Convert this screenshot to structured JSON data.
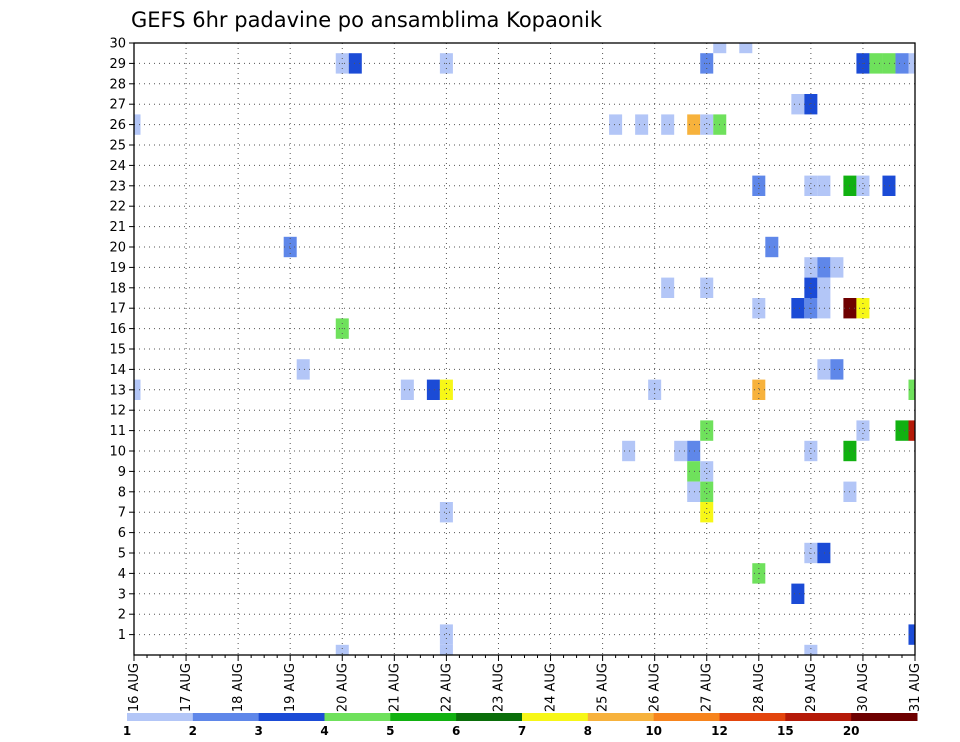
{
  "chart_data": {
    "type": "heatmap",
    "title": "GEFS 6hr padavine po ansamblima Kopaonik",
    "xlabel": "",
    "ylabel": "",
    "x_tick_labels": [
      "16 AUG",
      "17 AUG",
      "18 AUG",
      "19 AUG",
      "20 AUG",
      "21 AUG",
      "22 AUG",
      "23 AUG",
      "24 AUG",
      "25 AUG",
      "26 AUG",
      "27 AUG",
      "28 AUG",
      "29 AUG",
      "30 AUG",
      "31 AUG"
    ],
    "y_tick_labels": [
      "1",
      "2",
      "3",
      "4",
      "5",
      "6",
      "7",
      "8",
      "9",
      "10",
      "11",
      "12",
      "13",
      "14",
      "15",
      "16",
      "17",
      "18",
      "19",
      "20",
      "21",
      "22",
      "23",
      "24",
      "25",
      "26",
      "27",
      "28",
      "29",
      "30"
    ],
    "xlim": [
      0,
      60
    ],
    "ylim": [
      0,
      30
    ],
    "x_unit": "6-hour steps from 16 AUG 00z",
    "y_unit": "ensemble member",
    "grid": true,
    "legend": {
      "placement": "bottom",
      "thresholds": [
        "1",
        "2",
        "3",
        "4",
        "5",
        "6",
        "7",
        "8",
        "10",
        "12",
        "15",
        "20"
      ],
      "colors": [
        "#b3c6f7",
        "#5f87e9",
        "#1b4bd6",
        "#6fe15c",
        "#11b111",
        "#0a6e0a",
        "#f7f717",
        "#f7b23c",
        "#f7841d",
        "#e3450d",
        "#b51a08",
        "#6e0000"
      ]
    },
    "cells": [
      {
        "t": 0,
        "m": 26,
        "c": 0
      },
      {
        "t": 0,
        "m": 13,
        "c": 0
      },
      {
        "t": 12,
        "m": 20,
        "c": 1
      },
      {
        "t": 13,
        "m": 14,
        "c": 0
      },
      {
        "t": 16,
        "m": 29,
        "c": 0
      },
      {
        "t": 16,
        "m": 16,
        "c": 3
      },
      {
        "t": 16,
        "m": 0,
        "c": 0
      },
      {
        "t": 17,
        "m": 29,
        "c": 2
      },
      {
        "t": 21,
        "m": 13,
        "c": 0
      },
      {
        "t": 23,
        "m": 13,
        "c": 2
      },
      {
        "t": 24,
        "m": 29,
        "c": 0
      },
      {
        "t": 24,
        "m": 13,
        "c": 6
      },
      {
        "t": 24,
        "m": 7,
        "c": 0
      },
      {
        "t": 24,
        "m": 1,
        "c": 0
      },
      {
        "t": 24,
        "m": 0,
        "c": 0
      },
      {
        "t": 37,
        "m": 26,
        "c": 0
      },
      {
        "t": 38,
        "m": 10,
        "c": 0
      },
      {
        "t": 39,
        "m": 26,
        "c": 0
      },
      {
        "t": 40,
        "m": 13,
        "c": 0
      },
      {
        "t": 41,
        "m": 26,
        "c": 0
      },
      {
        "t": 41,
        "m": 18,
        "c": 0
      },
      {
        "t": 42,
        "m": 10,
        "c": 0
      },
      {
        "t": 43,
        "m": 26,
        "c": 7
      },
      {
        "t": 43,
        "m": 10,
        "c": 1
      },
      {
        "t": 43,
        "m": 9,
        "c": 3
      },
      {
        "t": 43,
        "m": 8,
        "c": 0
      },
      {
        "t": 44,
        "m": 29,
        "c": 1
      },
      {
        "t": 44,
        "m": 26,
        "c": 0
      },
      {
        "t": 44,
        "m": 18,
        "c": 0
      },
      {
        "t": 44,
        "m": 11,
        "c": 3
      },
      {
        "t": 44,
        "m": 9,
        "c": 0
      },
      {
        "t": 44,
        "m": 8,
        "c": 3
      },
      {
        "t": 44,
        "m": 7,
        "c": 6
      },
      {
        "t": 45,
        "m": 26,
        "c": 3
      },
      {
        "t": 45,
        "m": 30,
        "c": 0
      },
      {
        "t": 47,
        "m": 30,
        "c": 0
      },
      {
        "t": 48,
        "m": 23,
        "c": 1
      },
      {
        "t": 48,
        "m": 17,
        "c": 0
      },
      {
        "t": 48,
        "m": 13,
        "c": 7
      },
      {
        "t": 48,
        "m": 4,
        "c": 3
      },
      {
        "t": 49,
        "m": 20,
        "c": 1
      },
      {
        "t": 51,
        "m": 27,
        "c": 0
      },
      {
        "t": 51,
        "m": 17,
        "c": 2
      },
      {
        "t": 51,
        "m": 3,
        "c": 2
      },
      {
        "t": 52,
        "m": 27,
        "c": 2
      },
      {
        "t": 52,
        "m": 23,
        "c": 0
      },
      {
        "t": 52,
        "m": 19,
        "c": 0
      },
      {
        "t": 52,
        "m": 18,
        "c": 2
      },
      {
        "t": 52,
        "m": 17,
        "c": 1
      },
      {
        "t": 52,
        "m": 10,
        "c": 0
      },
      {
        "t": 52,
        "m": 5,
        "c": 0
      },
      {
        "t": 52,
        "m": 0,
        "c": 0
      },
      {
        "t": 53,
        "m": 23,
        "c": 0
      },
      {
        "t": 53,
        "m": 19,
        "c": 1
      },
      {
        "t": 53,
        "m": 18,
        "c": 0
      },
      {
        "t": 53,
        "m": 17,
        "c": 0
      },
      {
        "t": 53,
        "m": 14,
        "c": 0
      },
      {
        "t": 53,
        "m": 5,
        "c": 2
      },
      {
        "t": 54,
        "m": 19,
        "c": 0
      },
      {
        "t": 54,
        "m": 14,
        "c": 1
      },
      {
        "t": 55,
        "m": 23,
        "c": 4
      },
      {
        "t": 55,
        "m": 17,
        "c": 11
      },
      {
        "t": 55,
        "m": 10,
        "c": 4
      },
      {
        "t": 55,
        "m": 8,
        "c": 0
      },
      {
        "t": 56,
        "m": 29,
        "c": 2
      },
      {
        "t": 56,
        "m": 23,
        "c": 0
      },
      {
        "t": 56,
        "m": 17,
        "c": 6
      },
      {
        "t": 56,
        "m": 11,
        "c": 0
      },
      {
        "t": 57,
        "m": 29,
        "c": 3
      },
      {
        "t": 58,
        "m": 29,
        "c": 3
      },
      {
        "t": 58,
        "m": 23,
        "c": 2
      },
      {
        "t": 59,
        "m": 29,
        "c": 1
      },
      {
        "t": 59,
        "m": 11,
        "c": 4
      },
      {
        "t": 60,
        "m": 29,
        "c": 0
      },
      {
        "t": 60,
        "m": 13,
        "c": 3
      },
      {
        "t": 60,
        "m": 11,
        "c": 10
      },
      {
        "t": 60,
        "m": 1,
        "c": 2
      }
    ]
  }
}
